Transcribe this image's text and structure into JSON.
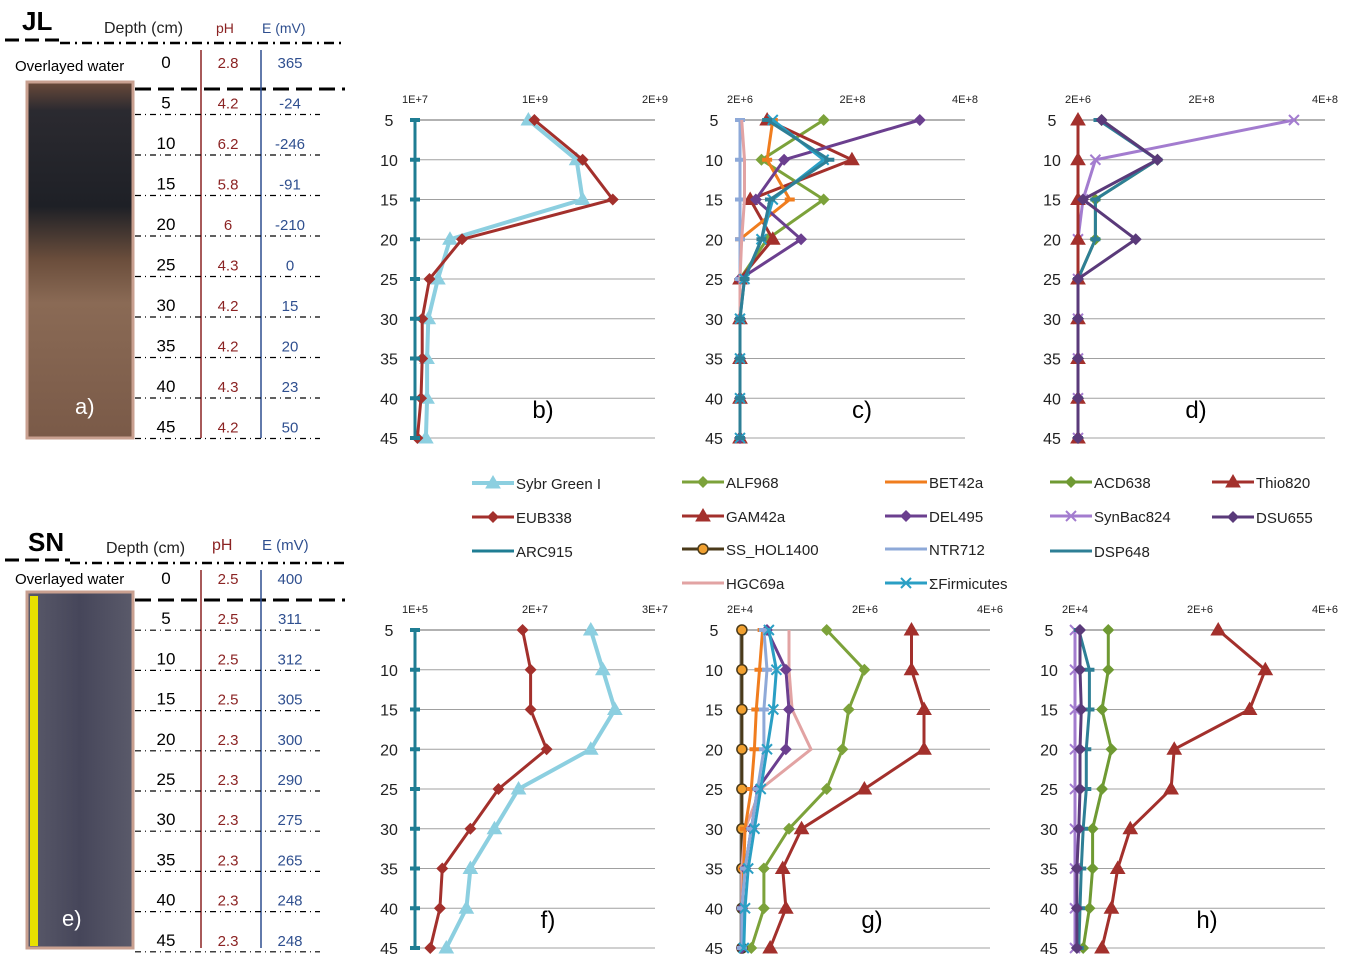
{
  "core_panels": [
    {
      "site": "JL",
      "header": {
        "depth": "Depth (cm)",
        "ph": "pH",
        "eh": "E (mV)"
      },
      "water_label": "Overlayed  water",
      "panel_label": "a)",
      "rows": [
        {
          "depth": "0",
          "ph": "2.8",
          "eh": "365"
        },
        {
          "depth": "5",
          "ph": "4.2",
          "eh": "-24"
        },
        {
          "depth": "10",
          "ph": "6.2",
          "eh": "-246"
        },
        {
          "depth": "15",
          "ph": "5.8",
          "eh": "-91"
        },
        {
          "depth": "20",
          "ph": "6",
          "eh": "-210"
        },
        {
          "depth": "25",
          "ph": "4.3",
          "eh": "0"
        },
        {
          "depth": "30",
          "ph": "4.2",
          "eh": "15"
        },
        {
          "depth": "35",
          "ph": "4.2",
          "eh": "20"
        },
        {
          "depth": "40",
          "ph": "4.3",
          "eh": "23"
        },
        {
          "depth": "45",
          "ph": "4.2",
          "eh": "50"
        }
      ]
    },
    {
      "site": "SN",
      "header": {
        "depth": "Depth (cm)",
        "ph": "pH",
        "eh": "E (mV)"
      },
      "water_label": "Overlayed  water",
      "panel_label": "e)",
      "rows": [
        {
          "depth": "0",
          "ph": "2.5",
          "eh": "400"
        },
        {
          "depth": "5",
          "ph": "2.5",
          "eh": "311"
        },
        {
          "depth": "10",
          "ph": "2.5",
          "eh": "312"
        },
        {
          "depth": "15",
          "ph": "2.5",
          "eh": "305"
        },
        {
          "depth": "20",
          "ph": "2.3",
          "eh": "300"
        },
        {
          "depth": "25",
          "ph": "2.3",
          "eh": "290"
        },
        {
          "depth": "30",
          "ph": "2.3",
          "eh": "275"
        },
        {
          "depth": "35",
          "ph": "2.3",
          "eh": "265"
        },
        {
          "depth": "40",
          "ph": "2.3",
          "eh": "248"
        },
        {
          "depth": "45",
          "ph": "2.3",
          "eh": "248"
        }
      ]
    }
  ],
  "colors": {
    "Sybr Green I": "#8ccfe0",
    "EUB338": "#a3302c",
    "ARC915": "#1f7d93",
    "ALF968": "#7ca23a",
    "GAM42a": "#a3302c",
    "SS_HOL1400": "#4a3a1a",
    "HGC69a": "#e2a3a3",
    "BET42a": "#f07d1e",
    "DEL495": "#6b3f8f",
    "NTR712": "#8ea9d8",
    "ΣFirmicutes": "#2a9fc4",
    "ACD638": "#6f9a33",
    "SynBac824": "#a37ccf",
    "DSP648": "#2e7f96",
    "Thio820": "#a3302c",
    "DSU655": "#5a3a7a"
  },
  "legend": {
    "items": [
      "Sybr Green I",
      "EUB338",
      "ARC915",
      "ALF968",
      "GAM42a",
      "SS_HOL1400",
      "HGC69a",
      "BET42a",
      "DEL495",
      "NTR712",
      "ΣFirmicutes",
      "ACD638",
      "SynBac824",
      "DSP648",
      "Thio820",
      "DSU655"
    ]
  },
  "chart_data": [
    {
      "type": "line",
      "panel": "b)",
      "x_ticks": [
        "1E+7",
        "1E+9",
        "2E+9"
      ],
      "xlim": [
        10000000,
        2000000000
      ],
      "y_ticks": [
        "5",
        "10",
        "15",
        "20",
        "25",
        "30",
        "35",
        "40",
        "45"
      ],
      "y": [
        5,
        10,
        15,
        20,
        25,
        30,
        35,
        40,
        45
      ],
      "series": [
        {
          "name": "Sybr Green I",
          "marker": "triangle",
          "values": [
            950000000,
            1350000000,
            1400000000,
            300000000,
            200000000,
            120000000,
            110000000,
            110000000,
            100000000
          ]
        },
        {
          "name": "EUB338",
          "marker": "diamond",
          "values": [
            1000000000,
            1400000000,
            1650000000,
            400000000,
            130000000,
            70000000,
            70000000,
            60000000,
            30000000
          ]
        },
        {
          "name": "ARC915",
          "marker": "dash",
          "values": [
            10000000,
            10000000,
            10000000,
            10000000,
            10000000,
            10000000,
            10000000,
            10000000,
            10000000
          ]
        }
      ]
    },
    {
      "type": "line",
      "panel": "c)",
      "x_ticks": [
        "2E+6",
        "2E+8",
        "4E+8"
      ],
      "xlim": [
        2000000,
        400000000
      ],
      "y_ticks": [
        "5",
        "10",
        "15",
        "20",
        "25",
        "30",
        "35",
        "40",
        "45"
      ],
      "y": [
        5,
        10,
        15,
        20,
        25,
        30,
        35,
        40,
        45
      ],
      "series": [
        {
          "name": "ALF968",
          "marker": "diamond",
          "values": [
            150000000,
            40000000,
            150000000,
            50000000,
            2000000,
            2000000,
            2000000,
            2000000,
            2000000
          ]
        },
        {
          "name": "GAM42a",
          "marker": "triangle",
          "values": [
            50000000,
            200000000,
            20000000,
            60000000,
            2000000,
            2000000,
            2000000,
            2000000,
            2000000
          ]
        },
        {
          "name": "BET42a",
          "marker": "dash",
          "values": [
            60000000,
            50000000,
            90000000,
            2000000,
            2000000,
            2000000,
            2000000,
            2000000,
            2000000
          ]
        },
        {
          "name": "DEL495",
          "marker": "diamond",
          "values": [
            320000000,
            80000000,
            30000000,
            110000000,
            2000000,
            2000000,
            2000000,
            2000000,
            2000000
          ]
        },
        {
          "name": "NTR712",
          "marker": "dash",
          "values": [
            2000000,
            2000000,
            2000000,
            2000000,
            2000000,
            2000000,
            2000000,
            2000000,
            2000000
          ]
        },
        {
          "name": "HGC69a",
          "marker": "none",
          "values": [
            5000000,
            10000000,
            10000000,
            5000000,
            2000000,
            2000000,
            2000000,
            2000000,
            2000000
          ]
        },
        {
          "name": "ΣFirmicutes",
          "marker": "x",
          "values": [
            60000000,
            150000000,
            60000000,
            40000000,
            10000000,
            2000000,
            2000000,
            2000000,
            2000000
          ]
        },
        {
          "name": "DSP648",
          "marker": "dash",
          "values": [
            50000000,
            160000000,
            55000000,
            40000000,
            10000000,
            2000000,
            2000000,
            2000000,
            2000000
          ]
        }
      ]
    },
    {
      "type": "line",
      "panel": "d)",
      "x_ticks": [
        "2E+6",
        "2E+8",
        "4E+8"
      ],
      "xlim": [
        2000000,
        400000000
      ],
      "y_ticks": [
        "5",
        "10",
        "15",
        "20",
        "25",
        "30",
        "35",
        "40",
        "45"
      ],
      "y": [
        5,
        10,
        15,
        20,
        25,
        30,
        35,
        40,
        45
      ],
      "series": [
        {
          "name": "ACD638",
          "marker": "diamond",
          "values": [
            40000000,
            130000000,
            30000000,
            30000000,
            2000000,
            2000000,
            2000000,
            2000000,
            2000000
          ]
        },
        {
          "name": "SynBac824",
          "marker": "x",
          "values": [
            350000000,
            30000000,
            10000000,
            2000000,
            2000000,
            2000000,
            2000000,
            2000000,
            2000000
          ]
        },
        {
          "name": "DSP648",
          "marker": "dash",
          "values": [
            35000000,
            130000000,
            30000000,
            30000000,
            2000000,
            2000000,
            2000000,
            2000000,
            2000000
          ]
        },
        {
          "name": "Thio820",
          "marker": "triangle",
          "values": [
            2000000,
            2000000,
            2000000,
            2000000,
            2000000,
            2000000,
            2000000,
            2000000,
            2000000
          ]
        },
        {
          "name": "DSU655",
          "marker": "diamond",
          "values": [
            40000000,
            130000000,
            10000000,
            95000000,
            2000000,
            2000000,
            2000000,
            2000000,
            2000000
          ]
        }
      ]
    },
    {
      "type": "line",
      "panel": "f)",
      "x_ticks": [
        "1E+5",
        "2E+7",
        "3E+7"
      ],
      "xlim": [
        100000,
        30000000
      ],
      "y_ticks": [
        "5",
        "10",
        "15",
        "20",
        "25",
        "30",
        "35",
        "40",
        "45"
      ],
      "y": [
        5,
        10,
        15,
        20,
        25,
        30,
        35,
        40,
        45
      ],
      "series": [
        {
          "name": "Sybr Green I",
          "marker": "triangle",
          "values": [
            22000000,
            23500000,
            25000000,
            22000000,
            13000000,
            10000000,
            7000000,
            6500000,
            4000000
          ]
        },
        {
          "name": "EUB338",
          "marker": "diamond",
          "values": [
            13500000,
            14500000,
            14500000,
            16500000,
            10500000,
            7000000,
            3500000,
            3200000,
            2000000
          ]
        },
        {
          "name": "ARC915",
          "marker": "dash",
          "values": [
            100000,
            100000,
            100000,
            100000,
            100000,
            100000,
            100000,
            100000,
            100000
          ]
        }
      ]
    },
    {
      "type": "line",
      "panel": "g)",
      "x_ticks": [
        "2E+4",
        "2E+6",
        "4E+6"
      ],
      "xlim": [
        20000,
        4000000
      ],
      "y_ticks": [
        "5",
        "10",
        "15",
        "20",
        "25",
        "30",
        "35",
        "40",
        "45"
      ],
      "y": [
        5,
        10,
        15,
        20,
        25,
        30,
        35,
        40,
        45
      ],
      "series": [
        {
          "name": "ALF968",
          "marker": "diamond",
          "values": [
            1400000,
            2000000,
            1750000,
            1650000,
            1400000,
            800000,
            400000,
            400000,
            200000
          ]
        },
        {
          "name": "GAM42a",
          "marker": "triangle",
          "values": [
            2750000,
            2750000,
            2950000,
            2950000,
            2000000,
            1000000,
            700000,
            750000,
            500000
          ]
        },
        {
          "name": "SS_HOL1400",
          "marker": "circle",
          "values": [
            50000,
            50000,
            50000,
            50000,
            50000,
            50000,
            50000,
            50000,
            50000
          ]
        },
        {
          "name": "HGC69a",
          "marker": "none",
          "values": [
            800000,
            800000,
            850000,
            1150000,
            350000,
            100000,
            50000,
            50000,
            50000
          ]
        },
        {
          "name": "BET42a",
          "marker": "dash",
          "values": [
            380000,
            330000,
            280000,
            250000,
            200000,
            100000,
            80000,
            60000,
            50000
          ]
        },
        {
          "name": "DEL495",
          "marker": "diamond",
          "values": [
            450000,
            750000,
            800000,
            750000,
            300000,
            200000,
            100000,
            50000,
            50000
          ]
        },
        {
          "name": "NTR712",
          "marker": "dash",
          "values": [
            400000,
            450000,
            400000,
            400000,
            300000,
            200000,
            100000,
            50000,
            50000
          ]
        },
        {
          "name": "ΣFirmicutes",
          "marker": "x",
          "values": [
            480000,
            600000,
            550000,
            450000,
            350000,
            250000,
            150000,
            100000,
            80000
          ]
        }
      ]
    },
    {
      "type": "line",
      "panel": "h)",
      "x_ticks": [
        "2E+4",
        "2E+6",
        "4E+6"
      ],
      "xlim": [
        20000,
        4000000
      ],
      "y_ticks": [
        "5",
        "10",
        "15",
        "20",
        "25",
        "30",
        "35",
        "40",
        "45"
      ],
      "y": [
        5,
        10,
        15,
        20,
        25,
        30,
        35,
        40,
        45
      ],
      "series": [
        {
          "name": "Thio820",
          "marker": "triangle",
          "values": [
            2300000,
            3050000,
            2800000,
            1600000,
            1550000,
            900000,
            700000,
            600000,
            450000
          ]
        },
        {
          "name": "ACD638",
          "marker": "diamond",
          "values": [
            550000,
            550000,
            450000,
            600000,
            450000,
            300000,
            300000,
            250000,
            150000
          ]
        },
        {
          "name": "SynBac824",
          "marker": "x",
          "values": [
            20000,
            20000,
            20000,
            20000,
            20000,
            20000,
            20000,
            20000,
            20000
          ]
        },
        {
          "name": "DSP648",
          "marker": "dash",
          "values": [
            80000,
            250000,
            250000,
            200000,
            200000,
            150000,
            120000,
            100000,
            80000
          ]
        },
        {
          "name": "DSU655",
          "marker": "diamond",
          "values": [
            100000,
            100000,
            120000,
            100000,
            100000,
            80000,
            50000,
            50000,
            50000
          ]
        }
      ]
    }
  ]
}
